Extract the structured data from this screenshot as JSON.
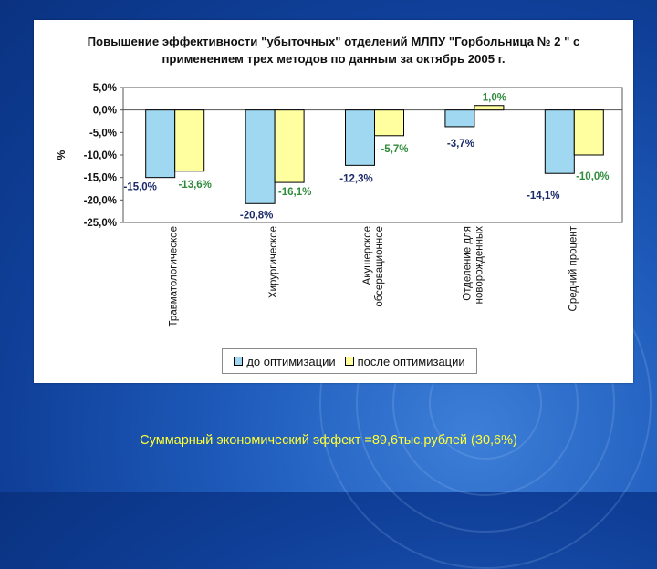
{
  "slide": {
    "summary_text": "Суммарный экономический эффект =89,6тыс.рублей (30,6%)"
  },
  "colors": {
    "series_before": "#9fd8f0",
    "series_after": "#ffff9f",
    "before_label": "#1a2a6a",
    "after_label": "#2e8b3a",
    "summary": "#ffff33"
  },
  "chart_data": {
    "type": "bar",
    "title_lines": [
      "Повышение эффективности \"убыточных\" отделений МЛПУ \"Горбольница № 2 \" с",
      "применением трех методов по данным за октябрь 2005 г."
    ],
    "ylabel": "%",
    "ylim": [
      -25,
      5
    ],
    "yticks": [
      "5,0%",
      "0,0%",
      "-5,0%",
      "-10,0%",
      "-15,0%",
      "-20,0%",
      "-25,0%"
    ],
    "categories": [
      [
        "Травматологическое"
      ],
      [
        "Хирургическое"
      ],
      [
        "Акушерское",
        "обсервационное"
      ],
      [
        "Отделение для",
        "новорожденных"
      ],
      [
        "Средний процент"
      ]
    ],
    "series": [
      {
        "name": "до оптимизации",
        "values": [
          -15.0,
          -20.8,
          -12.3,
          -3.7,
          -14.1
        ],
        "labels": [
          "-15,0%",
          "-20,8%",
          "-12,3%",
          "-3,7%",
          "-14,1%"
        ]
      },
      {
        "name": "после оптимизации",
        "values": [
          -13.6,
          -16.1,
          -5.7,
          1.0,
          -10.0
        ],
        "labels": [
          "-13,6%",
          "-16,1%",
          "-5,7%",
          "1,0%",
          "-10,0%"
        ]
      }
    ],
    "grid": false,
    "legend": "bottom"
  }
}
